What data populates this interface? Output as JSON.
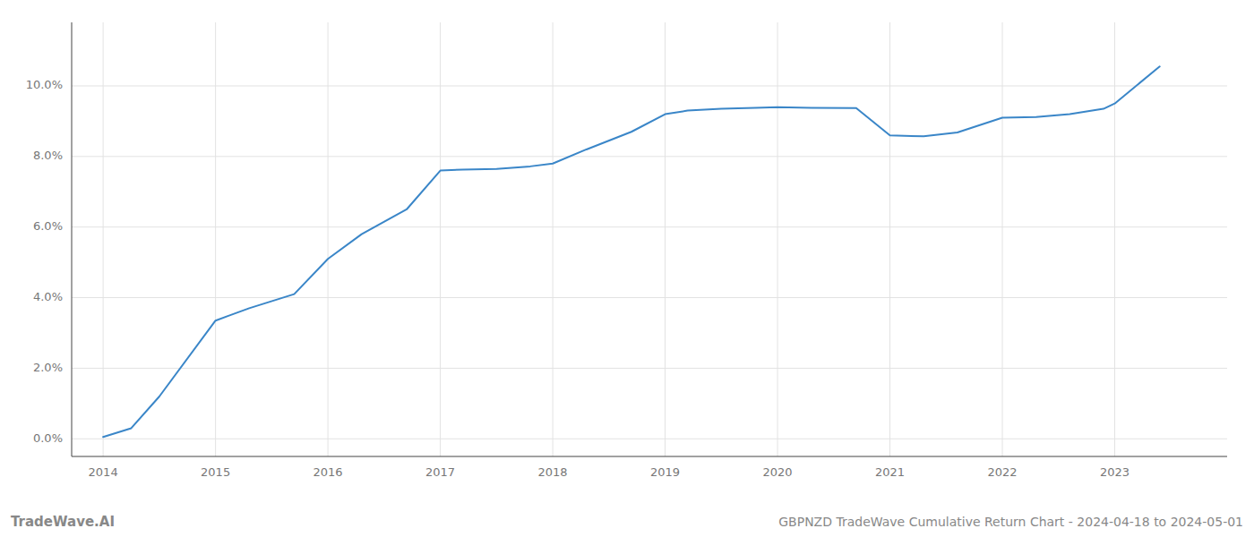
{
  "chart_data": {
    "type": "line",
    "title": "GBPNZD TradeWave Cumulative Return Chart - 2024-04-18 to 2024-05-01",
    "annotations": [
      "TradeWave.AI"
    ],
    "x": [
      2014.0,
      2014.25,
      2014.5,
      2015.0,
      2015.3,
      2015.7,
      2016.0,
      2016.3,
      2016.7,
      2017.0,
      2017.2,
      2017.5,
      2017.8,
      2018.0,
      2018.3,
      2018.7,
      2019.0,
      2019.2,
      2019.5,
      2019.8,
      2020.0,
      2020.3,
      2020.7,
      2021.0,
      2021.3,
      2021.6,
      2022.0,
      2022.3,
      2022.6,
      2022.9,
      2023.0,
      2023.4
    ],
    "values": [
      0.05,
      0.3,
      1.2,
      3.35,
      3.7,
      4.1,
      5.1,
      5.8,
      6.5,
      7.6,
      7.63,
      7.65,
      7.72,
      7.8,
      8.2,
      8.7,
      9.2,
      9.3,
      9.35,
      9.38,
      9.4,
      9.38,
      9.37,
      8.6,
      8.57,
      8.68,
      9.1,
      9.12,
      9.2,
      9.35,
      9.5,
      10.55
    ],
    "color": "#3a86c8",
    "xlim": [
      2013.72,
      2024.0
    ],
    "ylim": [
      -0.5,
      11.8
    ],
    "xticks": [
      2014,
      2015,
      2016,
      2017,
      2018,
      2019,
      2020,
      2021,
      2022,
      2023
    ],
    "yticks": [
      {
        "value": 0.0,
        "label": "0.0%"
      },
      {
        "value": 2.0,
        "label": "2.0%"
      },
      {
        "value": 4.0,
        "label": "4.0%"
      },
      {
        "value": 6.0,
        "label": "6.0%"
      },
      {
        "value": 8.0,
        "label": "8.0%"
      },
      {
        "value": 10.0,
        "label": "10.0%"
      }
    ],
    "grid": true
  }
}
